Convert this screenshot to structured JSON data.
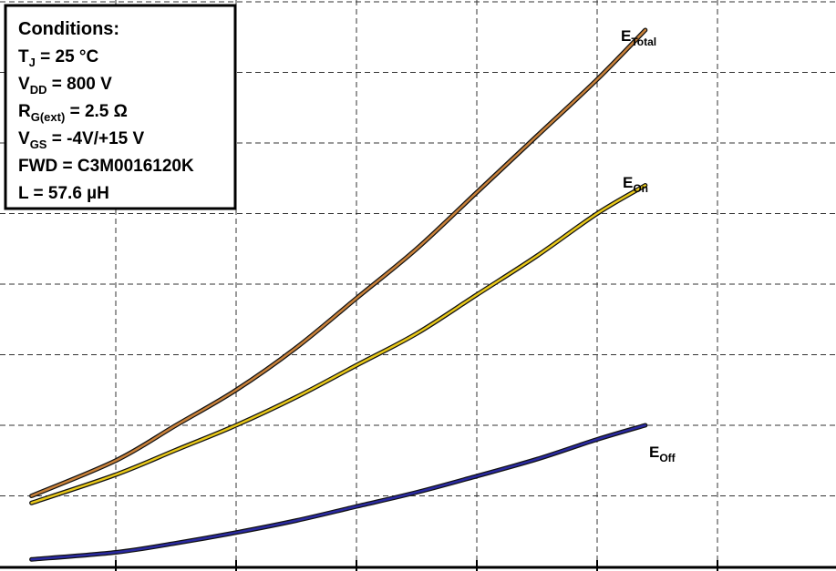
{
  "chart_data": {
    "type": "line",
    "title": "",
    "xlabel": "",
    "ylabel": "",
    "grid": true,
    "x_grid_count": 7,
    "y_grid_count": 8,
    "conditions": {
      "heading": "Conditions:",
      "lines": [
        {
          "base": "T",
          "sub": "J",
          "rest": " = 25 °C"
        },
        {
          "base": "V",
          "sub": "DD",
          "rest": " = 800 V"
        },
        {
          "base": "R",
          "sub": "G(ext)",
          "rest": " = 2.5 Ω"
        },
        {
          "base": "V",
          "sub": "GS",
          "rest": " = -4V/+15 V"
        },
        {
          "base": "FWD = C3M0016120K",
          "sub": "",
          "rest": ""
        },
        {
          "base": "L = 57.6 µH",
          "sub": "",
          "rest": ""
        }
      ]
    },
    "series": [
      {
        "name": "E_Total",
        "label_base": "E",
        "label_sub": "Total",
        "color": "#c8813a",
        "x": [
          0.3,
          1.0,
          1.5,
          2.0,
          2.5,
          3.0,
          3.5,
          4.0,
          4.5,
          5.0,
          5.4
        ],
        "y": [
          1.0,
          1.5,
          2.0,
          2.5,
          3.1,
          3.8,
          4.5,
          5.3,
          6.1,
          6.9,
          7.6
        ]
      },
      {
        "name": "E_On",
        "label_base": "E",
        "label_sub": "On",
        "color": "#e8c81a",
        "x": [
          0.3,
          1.0,
          1.5,
          2.0,
          2.5,
          3.0,
          3.5,
          4.0,
          4.5,
          5.0,
          5.4
        ],
        "y": [
          0.9,
          1.3,
          1.65,
          2.0,
          2.4,
          2.85,
          3.3,
          3.85,
          4.4,
          5.0,
          5.4
        ]
      },
      {
        "name": "E_Off",
        "label_base": "E",
        "label_sub": "Off",
        "color": "#2a2aa0",
        "x": [
          0.3,
          1.0,
          1.5,
          2.0,
          2.5,
          3.0,
          3.5,
          4.0,
          4.5,
          5.0,
          5.4
        ],
        "y": [
          0.1,
          0.2,
          0.33,
          0.48,
          0.65,
          0.85,
          1.05,
          1.28,
          1.52,
          1.8,
          2.0
        ]
      }
    ]
  }
}
